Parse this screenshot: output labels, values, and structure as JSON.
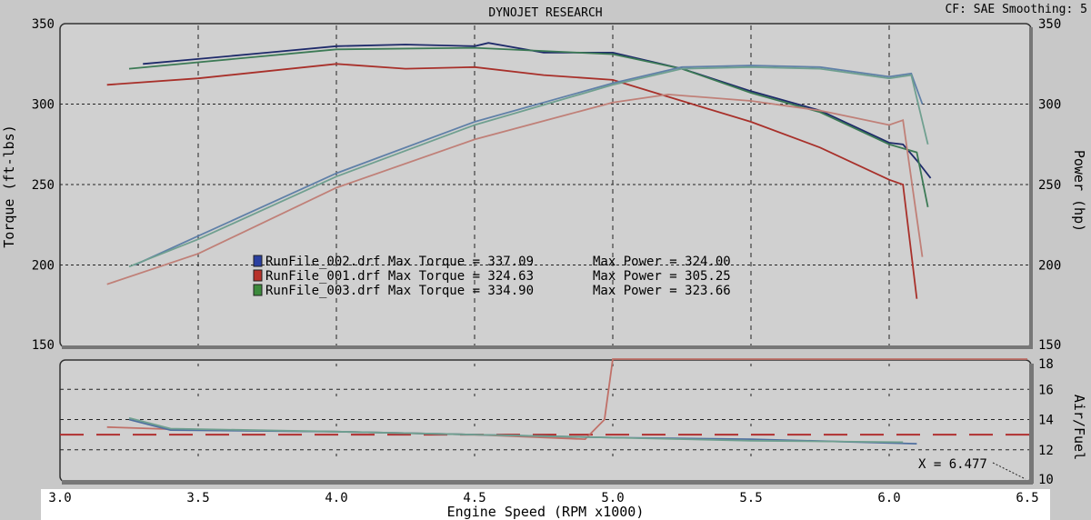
{
  "header": {
    "title": "DYNOJET RESEARCH",
    "settings": "CF: SAE  Smoothing: 5"
  },
  "chart_data": [
    {
      "type": "line",
      "title": "DYNOJET RESEARCH",
      "xlabel": "Engine Speed (RPM x1000)",
      "ylabel": "Torque (ft-lbs)",
      "y2label": "Power (hp)",
      "xlim": [
        3.0,
        6.5
      ],
      "ylim": [
        150,
        350
      ],
      "xticks": [
        "3.0",
        "3.5",
        "4.0",
        "4.5",
        "5.0",
        "5.5",
        "6.0",
        "6.5"
      ],
      "yticks": [
        "150",
        "200",
        "250",
        "300",
        "350"
      ],
      "legend": [
        {
          "file": "RunFile_002.drf",
          "max_torque_label": "Max Torque = 337.09",
          "max_power_label": "Max Power = 324.00",
          "color": "#2a3fa0"
        },
        {
          "file": "RunFile_001.drf",
          "max_torque_label": "Max Torque = 324.63",
          "max_power_label": "Max Power = 305.25",
          "color": "#b8322a"
        },
        {
          "file": "RunFile_003.drf",
          "max_torque_label": "Max Torque = 334.90",
          "max_power_label": "Max Power = 323.66",
          "color": "#3c8a3c"
        }
      ],
      "series": [
        {
          "name": "RunFile_002 Torque",
          "color": "#1e2a6a",
          "x": [
            3.3,
            3.5,
            3.75,
            4.0,
            4.25,
            4.5,
            4.55,
            4.75,
            5.0,
            5.25,
            5.5,
            5.75,
            6.0,
            6.05,
            6.1,
            6.15
          ],
          "y": [
            325,
            328,
            332,
            336,
            337,
            336,
            338,
            332,
            332,
            322,
            308,
            296,
            276,
            275,
            265,
            254
          ]
        },
        {
          "name": "RunFile_003 Torque",
          "color": "#3c7a55",
          "x": [
            3.25,
            3.5,
            4.0,
            4.5,
            4.75,
            5.0,
            5.25,
            5.5,
            5.75,
            6.0,
            6.1,
            6.14
          ],
          "y": [
            322,
            326,
            334,
            335,
            333,
            331,
            322,
            307,
            295,
            275,
            270,
            236
          ]
        },
        {
          "name": "RunFile_001 Torque",
          "color": "#a8302a",
          "x": [
            3.17,
            3.5,
            4.0,
            4.25,
            4.5,
            4.75,
            5.0,
            5.25,
            5.5,
            5.75,
            6.0,
            6.05,
            6.1
          ],
          "y": [
            312,
            316,
            325,
            322,
            323,
            318,
            315,
            302,
            289,
            273,
            253,
            250,
            179
          ]
        },
        {
          "name": "RunFile_002 Power",
          "color": "#6080a8",
          "x": [
            3.27,
            3.5,
            4.0,
            4.5,
            5.0,
            5.25,
            5.5,
            5.75,
            6.0,
            6.08,
            6.12
          ],
          "y": [
            200,
            218,
            257,
            289,
            313,
            323,
            324,
            323,
            317,
            319,
            300
          ]
        },
        {
          "name": "RunFile_003 Power",
          "color": "#70a090",
          "x": [
            3.25,
            3.5,
            4.0,
            4.5,
            5.0,
            5.25,
            5.5,
            5.75,
            6.0,
            6.08,
            6.14
          ],
          "y": [
            199,
            216,
            255,
            287,
            312,
            322,
            323,
            322,
            316,
            318,
            275
          ]
        },
        {
          "name": "RunFile_001 Power",
          "color": "#c08078",
          "x": [
            3.17,
            3.5,
            4.0,
            4.5,
            5.0,
            5.2,
            5.5,
            5.75,
            6.0,
            6.05,
            6.12
          ],
          "y": [
            188,
            207,
            248,
            278,
            301,
            306,
            302,
            296,
            287,
            290,
            205
          ]
        }
      ]
    },
    {
      "type": "line",
      "ylabel": "Air/Fuel",
      "xlim": [
        3.0,
        6.5
      ],
      "ylim": [
        10,
        18
      ],
      "yticks": [
        "10",
        "12",
        "14",
        "16",
        "18"
      ],
      "target_afr": 13.0,
      "cursor_label": "X = 6.477",
      "series": [
        {
          "name": "RunFile_001 AFR",
          "color": "#c07068",
          "x": [
            3.17,
            3.5,
            4.0,
            4.5,
            4.9,
            4.97,
            5.0,
            6.5
          ],
          "y": [
            13.5,
            13.3,
            13.2,
            13.0,
            12.7,
            14.0,
            18,
            18
          ]
        },
        {
          "name": "RunFile_002 AFR",
          "color": "#5070a0",
          "x": [
            3.25,
            3.4,
            4.0,
            4.5,
            5.0,
            5.5,
            6.1
          ],
          "y": [
            14.0,
            13.3,
            13.2,
            13.0,
            12.8,
            12.7,
            12.4
          ]
        },
        {
          "name": "RunFile_003 AFR",
          "color": "#70a090",
          "x": [
            3.25,
            3.4,
            4.0,
            4.5,
            5.0,
            5.5,
            6.05
          ],
          "y": [
            14.1,
            13.4,
            13.2,
            13.0,
            12.8,
            12.6,
            12.5
          ]
        }
      ]
    }
  ]
}
